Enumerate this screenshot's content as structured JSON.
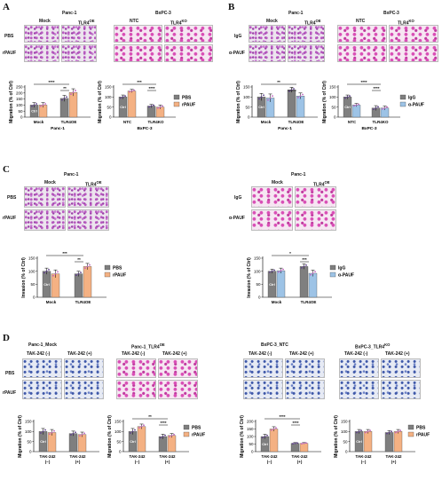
{
  "panels": [
    "A",
    "B",
    "C",
    "D"
  ],
  "cell_lines": {
    "panc1": "Panc-1",
    "bxpc3": "BxPC-3",
    "mock": "Mock",
    "tlr4oe": "TLR4",
    "oe": "OE",
    "ntc": "NTC",
    "tlr4ko": "TLR4",
    "ko": "KO"
  },
  "row_labels": {
    "pbs": "PBS",
    "rpauf": "rPAUF",
    "igg": "IgG",
    "apauf": "α-PAUF"
  },
  "axis_labels": {
    "migration": "Migration (% of Ctrl)",
    "invasion": "Invasion (% of Ctrl)"
  },
  "ctrl_label": "Ctrl",
  "legend": {
    "pbs": "PBS",
    "rpauf": "rPAUF",
    "igg": "IgG",
    "apauf": "α-PAUF"
  },
  "panelD": {
    "titles": [
      "Panc-1_Mock",
      "Panc-1_TLR4",
      "BxPC-3_NTC",
      "BxPC-3_TLR4"
    ],
    "sup": [
      "",
      "OE",
      "",
      "KO"
    ],
    "tak_minus": "TAK-242 (-)",
    "tak_plus": "TAK-242 (+)",
    "tak": "TAK-242",
    "minus": "(−)",
    "plus": "(+)"
  },
  "colors": {
    "gray": "#7f7f7f",
    "orange": "#f4b183",
    "blue": "#9dc3e6",
    "sig": "#111111"
  },
  "chart_data": [
    {
      "id": "A-panc1",
      "type": "bar",
      "ylabel": "Migration (% of Ctrl)",
      "ylim": [
        0,
        250
      ],
      "yticks": [
        0,
        50,
        100,
        150,
        200,
        250
      ],
      "categories": [
        "Mock",
        "TLR4OE"
      ],
      "xgroup": "Panc-1",
      "series": [
        {
          "name": "PBS",
          "values": [
            100,
            155
          ]
        },
        {
          "name": "rPAUF",
          "values": [
            100,
            205
          ]
        }
      ],
      "errors": [
        [
          20,
          25
        ],
        [
          20,
          30
        ]
      ],
      "sig": [
        "****",
        "**"
      ]
    },
    {
      "id": "A-bxpc3",
      "type": "bar",
      "ylabel": "Migration (% of Ctrl)",
      "ylim": [
        0,
        150
      ],
      "yticks": [
        0,
        50,
        100,
        150
      ],
      "categories": [
        "NTC",
        "TLR4KO"
      ],
      "xgroup": "BxPC-3",
      "series": [
        {
          "name": "PBS",
          "values": [
            100,
            55
          ]
        },
        {
          "name": "rPAUF",
          "values": [
            130,
            50
          ]
        }
      ],
      "errors": [
        [
          10,
          8
        ],
        [
          8,
          10
        ]
      ],
      "sig": [
        "***",
        "****"
      ]
    },
    {
      "id": "B-panc1",
      "type": "bar",
      "ylabel": "Migration (% of Ctrl)",
      "ylim": [
        0,
        150
      ],
      "yticks": [
        0,
        50,
        100,
        150
      ],
      "categories": [
        "Mock",
        "TLR4OE"
      ],
      "xgroup": "Panc-1",
      "series": [
        {
          "name": "IgG",
          "values": [
            100,
            135
          ]
        },
        {
          "name": "α-PAUF",
          "values": [
            95,
            105
          ]
        }
      ],
      "errors": [
        [
          18,
          12
        ],
        [
          20,
          15
        ]
      ],
      "sig": [
        "**",
        "*"
      ]
    },
    {
      "id": "B-bxpc3",
      "type": "bar",
      "ylabel": "Migration (% of Ctrl)",
      "ylim": [
        0,
        150
      ],
      "yticks": [
        0,
        50,
        100,
        150
      ],
      "categories": [
        "NTC",
        "TLR4KO"
      ],
      "xgroup": "BxPC-3",
      "series": [
        {
          "name": "IgG",
          "values": [
            100,
            45
          ]
        },
        {
          "name": "α-PAUF",
          "values": [
            60,
            45
          ]
        }
      ],
      "errors": [
        [
          10,
          12
        ],
        [
          8,
          10
        ]
      ],
      "sig": [
        "****",
        "****"
      ]
    },
    {
      "id": "C-rpauf",
      "type": "bar",
      "ylabel": "Invasion (% of Ctrl)",
      "ylim": [
        0,
        150
      ],
      "yticks": [
        0,
        50,
        100,
        150
      ],
      "categories": [
        "Mock",
        "TLR4OE"
      ],
      "xgroup": "",
      "series": [
        {
          "name": "PBS",
          "values": [
            100,
            90
          ]
        },
        {
          "name": "rPAUF",
          "values": [
            90,
            118
          ]
        }
      ],
      "errors": [
        [
          12,
          10
        ],
        [
          15,
          12
        ]
      ],
      "sig": [
        "***",
        "**"
      ]
    },
    {
      "id": "C-apauf",
      "type": "bar",
      "ylabel": "Invasion (% of Ctrl)",
      "ylim": [
        0,
        150
      ],
      "yticks": [
        0,
        50,
        100,
        150
      ],
      "categories": [
        "Mock",
        "TLR4OE"
      ],
      "xgroup": "",
      "series": [
        {
          "name": "IgG",
          "values": [
            100,
            118
          ]
        },
        {
          "name": "α-PAUF",
          "values": [
            102,
            92
          ]
        }
      ],
      "errors": [
        [
          8,
          10
        ],
        [
          10,
          12
        ]
      ],
      "sig": [
        "*",
        "***"
      ]
    },
    {
      "id": "D-mock",
      "type": "bar",
      "ylabel": "Migration (% of Ctrl)",
      "ylim": [
        0,
        150
      ],
      "yticks": [
        0,
        50,
        100,
        150
      ],
      "categories": [
        "TAK-242 (-)",
        "TAK-242 (+)"
      ],
      "xgroup": "",
      "series": [
        {
          "name": "PBS",
          "values": [
            100,
            90
          ]
        },
        {
          "name": "rPAUF",
          "values": [
            95,
            85
          ]
        }
      ],
      "errors": [
        [
          15,
          12
        ],
        [
          15,
          12
        ]
      ],
      "sig": []
    },
    {
      "id": "D-oe",
      "type": "bar",
      "ylabel": "Migration (% of Ctrl)",
      "ylim": [
        0,
        150
      ],
      "yticks": [
        0,
        50,
        100,
        150
      ],
      "categories": [
        "TAK-242 (-)",
        "TAK-242 (+)"
      ],
      "xgroup": "",
      "series": [
        {
          "name": "PBS",
          "values": [
            100,
            75
          ]
        },
        {
          "name": "rPAUF",
          "values": [
            125,
            80
          ]
        }
      ],
      "errors": [
        [
          15,
          12
        ],
        [
          12,
          10
        ]
      ],
      "sig": [
        "**",
        "****"
      ]
    },
    {
      "id": "D-ntc",
      "type": "bar",
      "ylabel": "Migration (% of Ctrl)",
      "ylim": [
        0,
        200
      ],
      "yticks": [
        0,
        50,
        100,
        150,
        200
      ],
      "categories": [
        "TAK-242 (-)",
        "TAK-242 (+)"
      ],
      "xgroup": "",
      "series": [
        {
          "name": "PBS",
          "values": [
            100,
            55
          ]
        },
        {
          "name": "rPAUF",
          "values": [
            150,
            55
          ]
        }
      ],
      "errors": [
        [
          15,
          5
        ],
        [
          15,
          5
        ]
      ],
      "sig": [
        "****",
        "****"
      ]
    },
    {
      "id": "D-ko",
      "type": "bar",
      "ylabel": "Migration (% of Ctrl)",
      "ylim": [
        0,
        150
      ],
      "yticks": [
        0,
        50,
        100,
        150
      ],
      "categories": [
        "TAK-242 (-)",
        "TAK-242 (+)"
      ],
      "xgroup": "",
      "series": [
        {
          "name": "PBS",
          "values": [
            100,
            95
          ]
        },
        {
          "name": "rPAUF",
          "values": [
            100,
            100
          ]
        }
      ],
      "errors": [
        [
          10,
          10
        ],
        [
          10,
          10
        ]
      ],
      "sig": []
    }
  ]
}
